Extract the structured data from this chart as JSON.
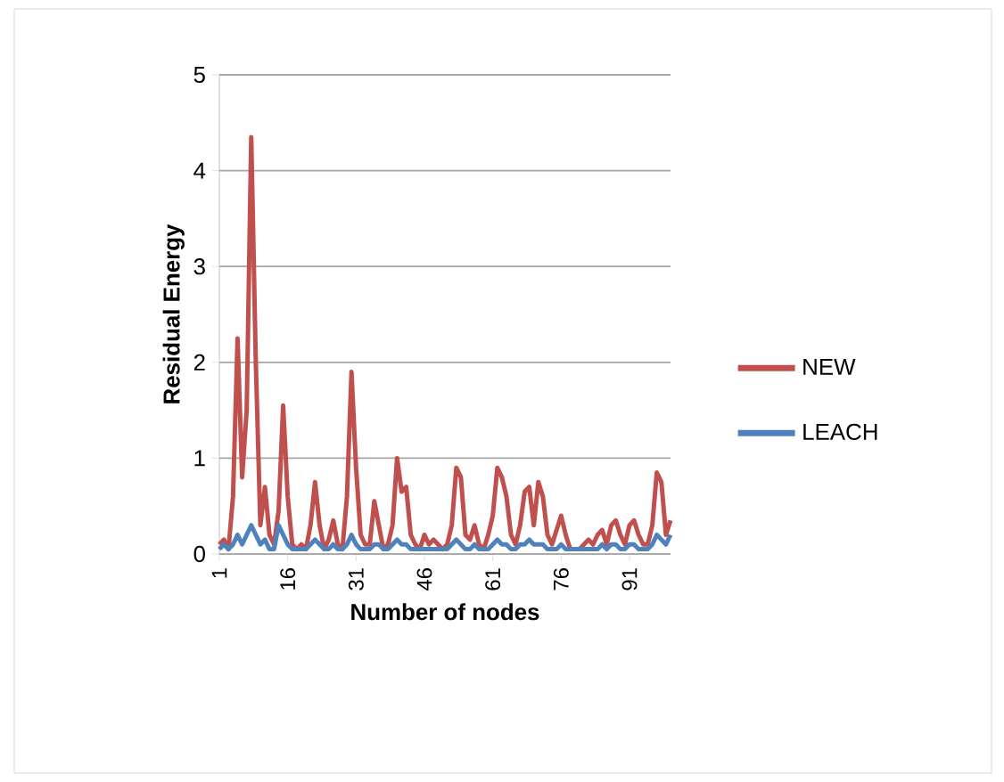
{
  "chart_data": {
    "type": "line",
    "xlabel": "Number of nodes",
    "ylabel": "Residual Energy",
    "categories": [
      "1",
      null,
      null,
      null,
      null,
      null,
      null,
      null,
      null,
      null,
      null,
      null,
      null,
      null,
      null,
      "16",
      null,
      null,
      null,
      null,
      null,
      null,
      null,
      null,
      null,
      null,
      null,
      null,
      null,
      null,
      "31",
      null,
      null,
      null,
      null,
      null,
      null,
      null,
      null,
      null,
      null,
      null,
      null,
      null,
      null,
      "46",
      null,
      null,
      null,
      null,
      null,
      null,
      null,
      null,
      null,
      null,
      null,
      null,
      null,
      null,
      "61",
      null,
      null,
      null,
      null,
      null,
      null,
      null,
      null,
      null,
      null,
      null,
      null,
      null,
      null,
      "76",
      null,
      null,
      null,
      null,
      null,
      null,
      null,
      null,
      null,
      null,
      null,
      null,
      null,
      null,
      "91",
      null,
      null,
      null,
      null,
      null,
      null,
      null,
      null,
      null
    ],
    "series": [
      {
        "name": "NEW",
        "color": "#c0504d",
        "values": [
          0.1,
          0.15,
          0.05,
          0.6,
          2.25,
          0.8,
          1.5,
          4.35,
          2.0,
          0.3,
          0.7,
          0.2,
          0.1,
          0.45,
          1.55,
          0.6,
          0.1,
          0.05,
          0.1,
          0.05,
          0.3,
          0.75,
          0.3,
          0.05,
          0.15,
          0.35,
          0.1,
          0.05,
          0.6,
          1.9,
          0.9,
          0.2,
          0.1,
          0.1,
          0.55,
          0.3,
          0.05,
          0.1,
          0.3,
          1.0,
          0.65,
          0.7,
          0.2,
          0.1,
          0.05,
          0.2,
          0.1,
          0.15,
          0.1,
          0.05,
          0.1,
          0.3,
          0.9,
          0.8,
          0.2,
          0.15,
          0.3,
          0.1,
          0.05,
          0.2,
          0.4,
          0.9,
          0.8,
          0.6,
          0.2,
          0.1,
          0.3,
          0.65,
          0.7,
          0.3,
          0.75,
          0.6,
          0.2,
          0.1,
          0.25,
          0.4,
          0.2,
          0.05,
          0.05,
          0.05,
          0.1,
          0.15,
          0.1,
          0.2,
          0.25,
          0.1,
          0.3,
          0.35,
          0.2,
          0.1,
          0.3,
          0.35,
          0.2,
          0.1,
          0.1,
          0.3,
          0.85,
          0.75,
          0.2,
          0.35
        ]
      },
      {
        "name": "LEACH",
        "color": "#4f81bd",
        "values": [
          0.05,
          0.1,
          0.05,
          0.1,
          0.2,
          0.1,
          0.2,
          0.3,
          0.2,
          0.1,
          0.15,
          0.05,
          0.05,
          0.3,
          0.2,
          0.1,
          0.05,
          0.05,
          0.05,
          0.05,
          0.1,
          0.15,
          0.1,
          0.05,
          0.05,
          0.1,
          0.05,
          0.05,
          0.1,
          0.2,
          0.1,
          0.05,
          0.05,
          0.05,
          0.1,
          0.1,
          0.05,
          0.05,
          0.1,
          0.15,
          0.1,
          0.1,
          0.05,
          0.05,
          0.05,
          0.05,
          0.05,
          0.05,
          0.05,
          0.05,
          0.05,
          0.1,
          0.15,
          0.1,
          0.05,
          0.05,
          0.1,
          0.05,
          0.05,
          0.05,
          0.1,
          0.15,
          0.1,
          0.1,
          0.05,
          0.05,
          0.1,
          0.1,
          0.15,
          0.1,
          0.1,
          0.1,
          0.05,
          0.05,
          0.05,
          0.1,
          0.05,
          0.05,
          0.05,
          0.05,
          0.05,
          0.05,
          0.05,
          0.05,
          0.1,
          0.05,
          0.1,
          0.1,
          0.05,
          0.05,
          0.1,
          0.1,
          0.05,
          0.05,
          0.05,
          0.1,
          0.2,
          0.15,
          0.1,
          0.2
        ]
      }
    ],
    "ylim": [
      0,
      5
    ],
    "yticks": [
      0,
      1,
      2,
      3,
      4,
      5
    ],
    "grid": "y",
    "legend": "right",
    "marker": "none",
    "line_style": "solid"
  }
}
